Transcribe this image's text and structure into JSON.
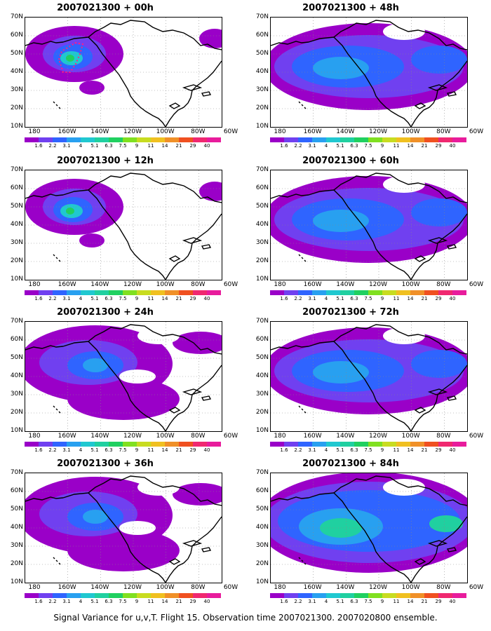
{
  "figure": {
    "caption": "Signal Variance for u,v,T. Flight 15. Observation time 2007021300. 2007020800 ensemble."
  },
  "axes": {
    "lat_labels": [
      "70N",
      "60N",
      "50N",
      "40N",
      "30N",
      "20N",
      "10N"
    ],
    "lon_labels": [
      "180",
      "160W",
      "140W",
      "120W",
      "100W",
      "80W",
      "60W"
    ]
  },
  "colorbar": {
    "colors": [
      "#9a00c8",
      "#7040f0",
      "#2f64ff",
      "#28a0f0",
      "#20c8d0",
      "#20d0a0",
      "#20d060",
      "#80e020",
      "#c8dc20",
      "#f0c020",
      "#f09028",
      "#f05020",
      "#f02870",
      "#e81c9c"
    ],
    "labels": [
      "1.6",
      "2.2",
      "3.1",
      "4",
      "5.1",
      "6.3",
      "7.5",
      "9",
      "11",
      "14",
      "21",
      "29",
      "40"
    ]
  },
  "panels": [
    {
      "title": "2007021300 + 00h",
      "lead_hours": 0,
      "intensity": 1
    },
    {
      "title": "2007021300 + 48h",
      "lead_hours": 48,
      "intensity": 3
    },
    {
      "title": "2007021300 + 12h",
      "lead_hours": 12,
      "intensity": 1
    },
    {
      "title": "2007021300 + 60h",
      "lead_hours": 60,
      "intensity": 3
    },
    {
      "title": "2007021300 + 24h",
      "lead_hours": 24,
      "intensity": 2
    },
    {
      "title": "2007021300 + 72h",
      "lead_hours": 72,
      "intensity": 3
    },
    {
      "title": "2007021300 + 36h",
      "lead_hours": 36,
      "intensity": 2
    },
    {
      "title": "2007021300 + 84h",
      "lead_hours": 84,
      "intensity": 4
    }
  ]
}
